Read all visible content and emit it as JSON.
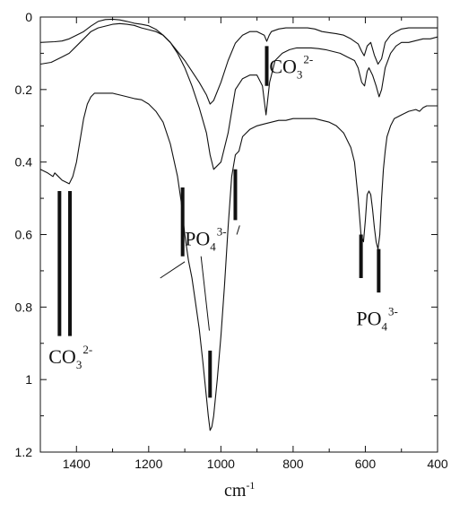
{
  "chart_data": {
    "type": "line",
    "title": "",
    "xlabel": "cm",
    "xlabel_superscript": "-1",
    "ylabel": "",
    "xlim": [
      1500,
      400
    ],
    "ylim": [
      0,
      1.2
    ],
    "x_reversed": true,
    "y_inverted": true,
    "grid": false,
    "x_ticks": [
      1400,
      1200,
      1000,
      800,
      600,
      400
    ],
    "x_tick_labels": [
      "1400",
      "1200",
      "1000",
      "800",
      "600",
      "400"
    ],
    "y_ticks": [
      0,
      0.2,
      0.4,
      0.6,
      0.8,
      1,
      1.2
    ],
    "y_tick_labels": [
      "0",
      "0.2",
      "0.4",
      "0.6",
      "0.8",
      "1",
      "1.2"
    ],
    "line_color": "#111111",
    "series": [
      {
        "x": [
          1500,
          1460,
          1440,
          1420,
          1400,
          1380,
          1360,
          1340,
          1320,
          1300,
          1280,
          1260,
          1240,
          1220,
          1200,
          1180,
          1160,
          1140,
          1120,
          1100,
          1080,
          1060,
          1040,
          1030,
          1020,
          1000,
          980,
          960,
          940,
          920,
          900,
          880,
          873,
          866,
          860,
          840,
          820,
          800,
          780,
          760,
          740,
          720,
          700,
          680,
          660,
          640,
          620,
          610,
          603,
          595,
          585,
          575,
          565,
          555,
          545,
          530,
          515,
          500,
          480,
          460,
          440,
          420,
          400
        ],
        "y": [
          0.07,
          0.068,
          0.066,
          0.06,
          0.05,
          0.04,
          0.025,
          0.012,
          0.007,
          0.006,
          0.008,
          0.012,
          0.017,
          0.02,
          0.024,
          0.034,
          0.05,
          0.07,
          0.095,
          0.12,
          0.15,
          0.18,
          0.215,
          0.24,
          0.23,
          0.18,
          0.12,
          0.072,
          0.05,
          0.04,
          0.04,
          0.05,
          0.067,
          0.05,
          0.04,
          0.033,
          0.03,
          0.03,
          0.03,
          0.03,
          0.033,
          0.04,
          0.043,
          0.046,
          0.05,
          0.06,
          0.074,
          0.095,
          0.107,
          0.08,
          0.07,
          0.105,
          0.13,
          0.115,
          0.07,
          0.05,
          0.04,
          0.033,
          0.03,
          0.03,
          0.03,
          0.03,
          0.03
        ]
      },
      {
        "x": [
          1500,
          1470,
          1440,
          1420,
          1400,
          1380,
          1360,
          1340,
          1320,
          1300,
          1280,
          1260,
          1240,
          1220,
          1200,
          1180,
          1160,
          1140,
          1120,
          1100,
          1080,
          1060,
          1040,
          1030,
          1020,
          1000,
          980,
          960,
          940,
          920,
          900,
          885,
          875,
          865,
          850,
          830,
          810,
          790,
          770,
          750,
          730,
          710,
          690,
          670,
          650,
          630,
          620,
          610,
          602,
          595,
          590,
          580,
          570,
          562,
          555,
          545,
          530,
          515,
          500,
          480,
          460,
          440,
          420,
          400
        ],
        "y": [
          0.13,
          0.125,
          0.11,
          0.1,
          0.08,
          0.06,
          0.04,
          0.03,
          0.025,
          0.02,
          0.018,
          0.02,
          0.023,
          0.03,
          0.035,
          0.04,
          0.05,
          0.07,
          0.1,
          0.14,
          0.19,
          0.25,
          0.32,
          0.38,
          0.42,
          0.4,
          0.32,
          0.2,
          0.17,
          0.16,
          0.16,
          0.19,
          0.27,
          0.18,
          0.12,
          0.1,
          0.09,
          0.085,
          0.085,
          0.085,
          0.087,
          0.09,
          0.095,
          0.1,
          0.11,
          0.12,
          0.14,
          0.18,
          0.19,
          0.15,
          0.14,
          0.16,
          0.19,
          0.22,
          0.2,
          0.14,
          0.1,
          0.08,
          0.07,
          0.07,
          0.065,
          0.06,
          0.06,
          0.055
        ]
      },
      {
        "x": [
          1500,
          1480,
          1465,
          1460,
          1450,
          1440,
          1430,
          1420,
          1410,
          1400,
          1390,
          1380,
          1370,
          1360,
          1350,
          1340,
          1320,
          1300,
          1280,
          1260,
          1240,
          1220,
          1200,
          1180,
          1160,
          1140,
          1120,
          1110,
          1100,
          1090,
          1080,
          1070,
          1060,
          1050,
          1040,
          1035,
          1030,
          1025,
          1020,
          1010,
          1000,
          990,
          980,
          970,
          960,
          950,
          940,
          920,
          900,
          880,
          860,
          840,
          820,
          800,
          780,
          760,
          740,
          720,
          700,
          680,
          660,
          640,
          630,
          620,
          612,
          605,
          600,
          595,
          590,
          585,
          580,
          575,
          570,
          565,
          560,
          555,
          550,
          545,
          540,
          530,
          520,
          500,
          480,
          460,
          450,
          440,
          430,
          420,
          410,
          400
        ],
        "y": [
          0.42,
          0.43,
          0.44,
          0.43,
          0.44,
          0.45,
          0.455,
          0.46,
          0.44,
          0.4,
          0.34,
          0.28,
          0.24,
          0.22,
          0.21,
          0.21,
          0.21,
          0.21,
          0.215,
          0.22,
          0.225,
          0.228,
          0.24,
          0.26,
          0.29,
          0.35,
          0.44,
          0.51,
          0.6,
          0.67,
          0.72,
          0.79,
          0.86,
          0.95,
          1.05,
          1.1,
          1.14,
          1.13,
          1.1,
          1.0,
          0.88,
          0.74,
          0.58,
          0.44,
          0.38,
          0.37,
          0.33,
          0.31,
          0.3,
          0.295,
          0.29,
          0.285,
          0.285,
          0.28,
          0.28,
          0.28,
          0.28,
          0.285,
          0.29,
          0.3,
          0.32,
          0.36,
          0.4,
          0.5,
          0.6,
          0.62,
          0.56,
          0.49,
          0.48,
          0.49,
          0.53,
          0.58,
          0.62,
          0.64,
          0.6,
          0.5,
          0.42,
          0.37,
          0.33,
          0.3,
          0.28,
          0.27,
          0.26,
          0.255,
          0.26,
          0.25,
          0.245,
          0.245,
          0.245,
          0.245
        ]
      }
    ],
    "marker_bars": [
      {
        "x": 1447,
        "y": [
          0.48,
          0.88
        ]
      },
      {
        "x": 1418,
        "y": [
          0.48,
          0.88
        ]
      },
      {
        "x": 1106,
        "y": [
          0.47,
          0.66
        ]
      },
      {
        "x": 960,
        "y": [
          0.42,
          0.56
        ]
      },
      {
        "x": 873,
        "y": [
          0.08,
          0.19
        ]
      },
      {
        "x": 1030,
        "y": [
          0.92,
          1.05
        ]
      },
      {
        "x": 612,
        "y": [
          0.6,
          0.72
        ]
      },
      {
        "x": 563,
        "y": [
          0.64,
          0.76
        ]
      }
    ],
    "leader_lines": [
      {
        "from": [
          1100,
          0.675
        ],
        "to": [
          1168,
          0.72
        ]
      },
      {
        "from": [
          1055,
          0.66
        ],
        "to": [
          1032,
          0.865
        ]
      },
      {
        "from": [
          948,
          0.575
        ],
        "to": [
          956,
          0.6
        ]
      }
    ],
    "annotations": [
      {
        "id": "co3_top",
        "base": "CO",
        "sub": "3",
        "sup": "2-",
        "x": 866,
        "y": 0.155
      },
      {
        "id": "po4_center",
        "base": "PO",
        "sub": "4",
        "sup": "3-",
        "x": 1100,
        "y": 0.63
      },
      {
        "id": "po4_right",
        "base": "PO",
        "sub": "4",
        "sup": "3-",
        "x": 625,
        "y": 0.85
      },
      {
        "id": "co3_left",
        "base": "CO",
        "sub": "3",
        "sup": "2-",
        "x": 1477,
        "y": 0.955
      }
    ]
  }
}
